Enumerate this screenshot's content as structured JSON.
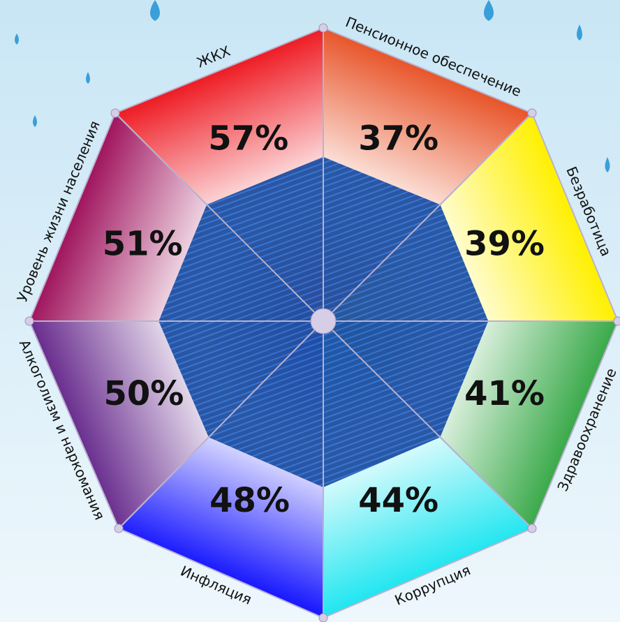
{
  "chart_data": {
    "type": "octagon",
    "categories": [
      "ЖКХ",
      "Пенсионное обеспечение",
      "Безработица",
      "Здравоохранение",
      "Коррупция",
      "Инфляция",
      "Алкоголизм и наркомания",
      "Уровень жизни населения"
    ],
    "values": [
      57,
      37,
      39,
      41,
      44,
      48,
      50,
      51
    ],
    "value_labels": [
      "57%",
      "37%",
      "39%",
      "41%",
      "44%",
      "48%",
      "50%",
      "51%"
    ],
    "colors": [
      "#ee1c24",
      "#e8552a",
      "#fff000",
      "#3aaa4a",
      "#22e6f0",
      "#1a1aff",
      "#6a2f8f",
      "#a0155f"
    ]
  }
}
